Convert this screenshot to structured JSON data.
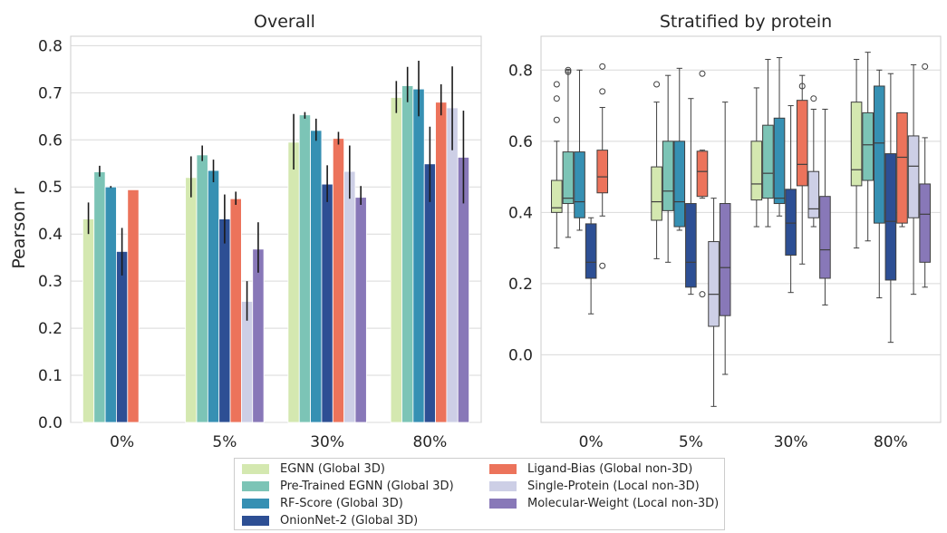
{
  "chart_data": [
    {
      "type": "bar",
      "title": "Overall",
      "ylabel": "Pearson r",
      "xlabel": "",
      "ylim": [
        0,
        0.82
      ],
      "yticks": [
        "0.0",
        "0.1",
        "0.2",
        "0.3",
        "0.4",
        "0.5",
        "0.6",
        "0.7",
        "0.8"
      ],
      "categories": [
        "0%",
        "5%",
        "30%",
        "80%"
      ],
      "series": [
        {
          "name": "EGNN (Global 3D)",
          "color": "#d4e8b0",
          "values": [
            0.432,
            0.52,
            0.595,
            0.69
          ],
          "err_low": [
            0.4,
            0.478,
            0.537,
            0.657
          ],
          "err_high": [
            0.467,
            0.565,
            0.655,
            0.725
          ]
        },
        {
          "name": "Pre-Trained EGNN (Global 3D)",
          "color": "#7cc4b6",
          "values": [
            0.532,
            0.568,
            0.653,
            0.715
          ],
          "err_low": [
            0.522,
            0.555,
            0.645,
            0.68
          ],
          "err_high": [
            0.545,
            0.588,
            0.659,
            0.755
          ]
        },
        {
          "name": "RF-Score (Global 3D)",
          "color": "#3690b3",
          "values": [
            0.5,
            0.535,
            0.62,
            0.708
          ],
          "err_low": [
            0.498,
            0.51,
            0.598,
            0.65
          ],
          "err_high": [
            0.502,
            0.558,
            0.645,
            0.768
          ]
        },
        {
          "name": "OnionNet-2 (Global 3D)",
          "color": "#2d4f94",
          "values": [
            0.363,
            0.432,
            0.506,
            0.549
          ],
          "err_low": [
            0.312,
            0.38,
            0.468,
            0.468
          ],
          "err_high": [
            0.413,
            0.484,
            0.546,
            0.628
          ]
        },
        {
          "name": "Ligand-Bias (Global non-3D)",
          "color": "#ec735b",
          "values": [
            0.494,
            0.475,
            0.603,
            0.68
          ],
          "err_low": [
            0.494,
            0.462,
            0.59,
            0.652
          ],
          "err_high": [
            0.494,
            0.49,
            0.617,
            0.718
          ]
        },
        {
          "name": "Single-Protein (Local non-3D)",
          "color": "#cdcfe6",
          "values": [
            null,
            0.257,
            0.533,
            0.668
          ],
          "err_low": [
            null,
            0.216,
            0.475,
            0.578
          ],
          "err_high": [
            null,
            0.3,
            0.588,
            0.756
          ]
        },
        {
          "name": "Molecular-Weight (Local non-3D)",
          "color": "#8878b8",
          "values": [
            null,
            0.368,
            0.478,
            0.563
          ],
          "err_low": [
            null,
            0.318,
            0.462,
            0.465
          ],
          "err_high": [
            null,
            0.425,
            0.502,
            0.662
          ]
        }
      ]
    },
    {
      "type": "box",
      "title": "Stratified by protein",
      "ylabel": "",
      "xlabel": "",
      "ylim": [
        -0.19,
        0.895
      ],
      "yticks": [
        "0.0",
        "0.2",
        "0.4",
        "0.6",
        "0.8"
      ],
      "categories": [
        "0%",
        "5%",
        "30%",
        "80%"
      ],
      "boxes": [
        [
          {
            "series": "EGNN (Global 3D)",
            "whislo": 0.3,
            "q1": 0.4,
            "med": 0.413,
            "q3": 0.49,
            "whishi": 0.6,
            "fliers": [
              0.66,
              0.72,
              0.76
            ]
          },
          {
            "series": "Pre-Trained EGNN (Global 3D)",
            "whislo": 0.33,
            "q1": 0.425,
            "med": 0.44,
            "q3": 0.57,
            "whishi": 0.8,
            "fliers": [
              0.795,
              0.8
            ]
          },
          {
            "series": "RF-Score (Global 3D)",
            "whislo": 0.35,
            "q1": 0.385,
            "med": 0.43,
            "q3": 0.57,
            "whishi": 0.8,
            "fliers": []
          },
          {
            "series": "OnionNet-2 (Global 3D)",
            "whislo": 0.115,
            "q1": 0.215,
            "med": 0.26,
            "q3": 0.368,
            "whishi": 0.385,
            "fliers": []
          },
          {
            "series": "Ligand-Bias (Global non-3D)",
            "whislo": 0.39,
            "q1": 0.455,
            "med": 0.5,
            "q3": 0.575,
            "whishi": 0.695,
            "fliers": [
              0.25,
              0.74,
              0.81
            ]
          },
          null,
          null
        ],
        [
          {
            "series": "EGNN (Global 3D)",
            "whislo": 0.27,
            "q1": 0.378,
            "med": 0.43,
            "q3": 0.528,
            "whishi": 0.71,
            "fliers": [
              0.76
            ]
          },
          {
            "series": "Pre-Trained EGNN (Global 3D)",
            "whislo": 0.26,
            "q1": 0.405,
            "med": 0.46,
            "q3": 0.6,
            "whishi": 0.785,
            "fliers": []
          },
          {
            "series": "RF-Score (Global 3D)",
            "whislo": 0.35,
            "q1": 0.36,
            "med": 0.43,
            "q3": 0.6,
            "whishi": 0.805,
            "fliers": []
          },
          {
            "series": "OnionNet-2 (Global 3D)",
            "whislo": 0.17,
            "q1": 0.19,
            "med": 0.26,
            "q3": 0.425,
            "whishi": 0.72,
            "fliers": []
          },
          {
            "series": "Ligand-Bias (Global non-3D)",
            "whislo": 0.44,
            "q1": 0.445,
            "med": 0.515,
            "q3": 0.572,
            "whishi": 0.575,
            "fliers": [
              0.17,
              0.79
            ]
          },
          {
            "series": "Single-Protein (Local non-3D)",
            "whislo": -0.145,
            "q1": 0.08,
            "med": 0.17,
            "q3": 0.318,
            "whishi": 0.44,
            "fliers": []
          },
          {
            "series": "Molecular-Weight (Local non-3D)",
            "whislo": -0.055,
            "q1": 0.11,
            "med": 0.245,
            "q3": 0.425,
            "whishi": 0.71,
            "fliers": []
          }
        ],
        [
          {
            "series": "EGNN (Global 3D)",
            "whislo": 0.36,
            "q1": 0.435,
            "med": 0.48,
            "q3": 0.6,
            "whishi": 0.75,
            "fliers": []
          },
          {
            "series": "Pre-Trained EGNN (Global 3D)",
            "whislo": 0.36,
            "q1": 0.44,
            "med": 0.51,
            "q3": 0.645,
            "whishi": 0.83,
            "fliers": []
          },
          {
            "series": "RF-Score (Global 3D)",
            "whislo": 0.39,
            "q1": 0.425,
            "med": 0.44,
            "q3": 0.665,
            "whishi": 0.835,
            "fliers": []
          },
          {
            "series": "OnionNet-2 (Global 3D)",
            "whislo": 0.175,
            "q1": 0.28,
            "med": 0.37,
            "q3": 0.465,
            "whishi": 0.7,
            "fliers": []
          },
          {
            "series": "Ligand-Bias (Global non-3D)",
            "whislo": 0.255,
            "q1": 0.475,
            "med": 0.535,
            "q3": 0.715,
            "whishi": 0.785,
            "fliers": [
              0.755
            ]
          },
          {
            "series": "Single-Protein (Local non-3D)",
            "whislo": 0.36,
            "q1": 0.385,
            "med": 0.41,
            "q3": 0.515,
            "whishi": 0.69,
            "fliers": [
              0.72
            ]
          },
          {
            "series": "Molecular-Weight (Local non-3D)",
            "whislo": 0.14,
            "q1": 0.215,
            "med": 0.295,
            "q3": 0.445,
            "whishi": 0.69,
            "fliers": []
          }
        ],
        [
          {
            "series": "EGNN (Global 3D)",
            "whislo": 0.3,
            "q1": 0.475,
            "med": 0.52,
            "q3": 0.71,
            "whishi": 0.83,
            "fliers": []
          },
          {
            "series": "Pre-Trained EGNN (Global 3D)",
            "whislo": 0.32,
            "q1": 0.49,
            "med": 0.59,
            "q3": 0.68,
            "whishi": 0.85,
            "fliers": []
          },
          {
            "series": "RF-Score (Global 3D)",
            "whislo": 0.16,
            "q1": 0.37,
            "med": 0.595,
            "q3": 0.755,
            "whishi": 0.8,
            "fliers": []
          },
          {
            "series": "OnionNet-2 (Global 3D)",
            "whislo": 0.035,
            "q1": 0.21,
            "med": 0.375,
            "q3": 0.565,
            "whishi": 0.79,
            "fliers": []
          },
          {
            "series": "Ligand-Bias (Global non-3D)",
            "whislo": 0.36,
            "q1": 0.37,
            "med": 0.555,
            "q3": 0.68,
            "whishi": 0.68,
            "fliers": []
          },
          {
            "series": "Single-Protein (Local non-3D)",
            "whislo": 0.17,
            "q1": 0.385,
            "med": 0.53,
            "q3": 0.615,
            "whishi": 0.815,
            "fliers": []
          },
          {
            "series": "Molecular-Weight (Local non-3D)",
            "whislo": 0.19,
            "q1": 0.26,
            "med": 0.395,
            "q3": 0.48,
            "whishi": 0.61,
            "fliers": [
              0.81
            ]
          }
        ]
      ]
    }
  ],
  "legend": {
    "items": [
      {
        "label": "EGNN (Global 3D)",
        "color": "#d4e8b0"
      },
      {
        "label": "Pre-Trained EGNN (Global 3D)",
        "color": "#7cc4b6"
      },
      {
        "label": "RF-Score (Global 3D)",
        "color": "#3690b3"
      },
      {
        "label": "OnionNet-2 (Global 3D)",
        "color": "#2d4f94"
      },
      {
        "label": "Ligand-Bias (Global non-3D)",
        "color": "#ec735b"
      },
      {
        "label": "Single-Protein (Local non-3D)",
        "color": "#cdcfe6"
      },
      {
        "label": "Molecular-Weight (Local non-3D)",
        "color": "#8878b8"
      }
    ]
  }
}
